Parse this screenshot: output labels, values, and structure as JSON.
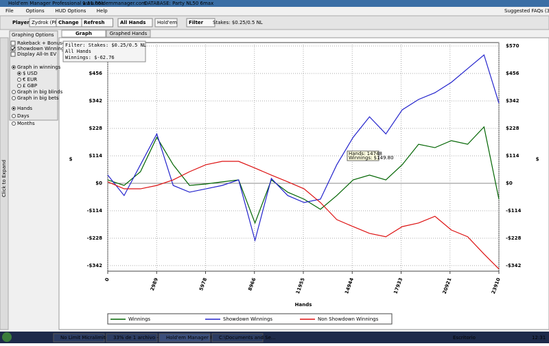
{
  "window": {
    "title": "Hold'em Manager Professional 1.11.06a",
    "site": "www.holdemmanager.com",
    "database": "DATABASE: Party NL50 6max"
  },
  "menu": [
    "File",
    "Options",
    "HUD Options",
    "Help"
  ],
  "faq": "Suggested FAQs (3)",
  "toolbar": {
    "player_label": "Player",
    "player": "Zydrok (PP)",
    "change": "Change",
    "refresh": "Refresh",
    "all_hands": "All Hands",
    "game": "Hold'em",
    "filter": "Filter",
    "stakes": "Stakes: $0.25/0.5 NL"
  },
  "tabs": [
    "Graph",
    "Graphed Hands"
  ],
  "sidebar": {
    "title": "Graphing Options",
    "expand": "Click to Expand",
    "checkboxes": [
      {
        "label": "Rakeback + Bonuses",
        "checked": false
      },
      {
        "label": "Showdown Winnings",
        "checked": true
      },
      {
        "label": "Display All-In EV",
        "checked": false
      }
    ],
    "modes": [
      {
        "label": "Graph in winnings",
        "selected": true
      },
      {
        "label": "Graph in big blinds",
        "selected": false
      },
      {
        "label": "Graph in big bets",
        "selected": false
      }
    ],
    "currencies": [
      {
        "label": "$ USD",
        "selected": true
      },
      {
        "label": "€ EUR",
        "selected": false
      },
      {
        "label": "£ GBP",
        "selected": false
      }
    ],
    "periods": [
      {
        "label": "Hands",
        "selected": true
      },
      {
        "label": "Days",
        "selected": false
      },
      {
        "label": "Months",
        "selected": false
      }
    ]
  },
  "taskbar": {
    "tasks": [
      "No Limit Micralimites S...",
      "33% de 1 archivo - D...",
      "Hold'em Manager Pro...",
      "C:\\Documents and Se..."
    ],
    "desktop": "Escritorio",
    "clock": "12:31"
  },
  "chart_data": {
    "type": "line",
    "info_box": [
      "Filter: Stakes: $0.25/0.5 NL",
      "All Hands",
      "Winnings: $-62.76"
    ],
    "tooltip": [
      "Hands: 14748",
      "Winnings: $149.80"
    ],
    "xlabel": "Hands",
    "ylabel": "$",
    "xlim": [
      0,
      23910
    ],
    "ylim": [
      -365,
      570
    ],
    "xticks": [
      0,
      2989,
      5978,
      8966,
      11955,
      14944,
      17933,
      20921,
      23910
    ],
    "yticks": [
      {
        "value": -342,
        "label": "-$342"
      },
      {
        "value": -228,
        "label": "-$228"
      },
      {
        "value": -114,
        "label": "-$114"
      },
      {
        "value": 0,
        "label": "$0"
      },
      {
        "value": 114,
        "label": "$114"
      },
      {
        "value": 228,
        "label": "$228"
      },
      {
        "value": 342,
        "label": "$342"
      },
      {
        "value": 456,
        "label": "$456"
      },
      {
        "value": 570,
        "label": "$570"
      }
    ],
    "grid": true,
    "x": [
      0,
      1000,
      2000,
      3000,
      4000,
      5000,
      6000,
      7000,
      8000,
      9000,
      10000,
      11000,
      12000,
      13000,
      14000,
      15000,
      16000,
      17000,
      18000,
      19000,
      20000,
      21000,
      22000,
      23000,
      23910
    ],
    "series": [
      {
        "name": "Winnings",
        "color": "#006400",
        "values": [
          14,
          -9,
          48,
          191,
          77,
          -9,
          -3,
          6,
          14,
          -165,
          14,
          -37,
          -66,
          -108,
          -51,
          14,
          34,
          14,
          77,
          162,
          148,
          177,
          162,
          234,
          -66
        ]
      },
      {
        "name": "Showdown Winnings",
        "color": "#2222cc",
        "values": [
          34,
          -51,
          77,
          205,
          -9,
          -37,
          -23,
          -9,
          14,
          -237,
          20,
          -51,
          -80,
          -66,
          77,
          191,
          276,
          205,
          305,
          348,
          376,
          419,
          476,
          533,
          333
        ]
      },
      {
        "name": "Non Showdown Winnings",
        "color": "#dd1111",
        "values": [
          6,
          -23,
          -23,
          -9,
          14,
          48,
          77,
          91,
          91,
          63,
          34,
          6,
          -23,
          -80,
          -151,
          -180,
          -208,
          -222,
          -180,
          -165,
          -137,
          -194,
          -222,
          -294,
          -356
        ]
      }
    ]
  }
}
